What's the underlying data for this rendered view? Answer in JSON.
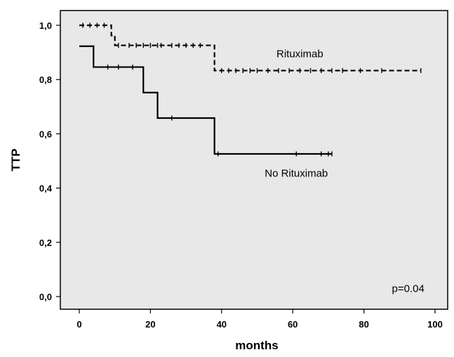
{
  "chart_data": {
    "type": "line",
    "subtype": "kaplan-meier",
    "ylabel": "TTP",
    "xlabel": "months",
    "xlim": [
      0,
      100
    ],
    "ylim": [
      0,
      1.0
    ],
    "xticks": [
      0,
      20,
      40,
      60,
      80,
      100
    ],
    "xtick_labels": [
      "0",
      "20",
      "40",
      "60",
      "80",
      "100"
    ],
    "yticks": [
      0.0,
      0.2,
      0.4,
      0.6,
      0.8,
      1.0
    ],
    "ytick_labels": [
      "0,0",
      "0,2",
      "0,4",
      "0,6",
      "0,8",
      "1,0"
    ],
    "plot_background": "#e8e8e8",
    "grid": false,
    "annotations": [
      {
        "text": "p=0.04",
        "x": 97,
        "y": 0.03
      },
      {
        "text": "Rituximab",
        "x": 62,
        "y": 0.895
      },
      {
        "text": "No Rituximab",
        "x": 61,
        "y": 0.455
      }
    ],
    "series": [
      {
        "name": "Rituximab",
        "line_style": "dashed",
        "color": "#000000",
        "steps": [
          {
            "x": 0,
            "y": 1.0
          },
          {
            "x": 9,
            "y": 0.962
          },
          {
            "x": 10,
            "y": 0.926
          },
          {
            "x": 38,
            "y": 0.833
          }
        ],
        "end_x": 96,
        "censored": [
          1,
          3,
          5,
          7,
          11,
          14,
          16,
          18,
          20,
          22,
          23,
          26,
          28,
          30,
          32,
          34,
          40,
          42,
          44,
          46,
          48,
          50,
          53,
          56,
          59,
          62,
          65,
          68,
          71,
          74,
          79,
          85,
          96
        ]
      },
      {
        "name": "No Rituximab",
        "line_style": "solid",
        "color": "#000000",
        "steps": [
          {
            "x": 0,
            "y": 0.923
          },
          {
            "x": 4,
            "y": 0.846
          },
          {
            "x": 18,
            "y": 0.752
          },
          {
            "x": 22,
            "y": 0.658
          },
          {
            "x": 38,
            "y": 0.526
          }
        ],
        "end_x": 71,
        "censored": [
          8,
          11,
          15,
          26,
          39,
          61,
          68,
          70,
          71
        ]
      }
    ]
  }
}
